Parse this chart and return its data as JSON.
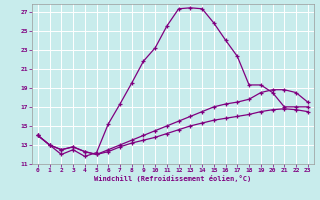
{
  "xlabel": "Windchill (Refroidissement éolien,°C)",
  "background_color": "#c8ecec",
  "grid_color": "#b0d8d8",
  "line_color": "#800080",
  "xlim": [
    -0.5,
    23.5
  ],
  "ylim": [
    11,
    27.8
  ],
  "yticks": [
    11,
    13,
    15,
    17,
    19,
    21,
    23,
    25,
    27
  ],
  "xticks": [
    0,
    1,
    2,
    3,
    4,
    5,
    6,
    7,
    8,
    9,
    10,
    11,
    12,
    13,
    14,
    15,
    16,
    17,
    18,
    19,
    20,
    21,
    22,
    23
  ],
  "series": [
    {
      "x": [
        0,
        1,
        2,
        3,
        4,
        5,
        6,
        7,
        8,
        9,
        10,
        11,
        12,
        13,
        14,
        15,
        16,
        17,
        18,
        19,
        20,
        21,
        22,
        23
      ],
      "y": [
        14.0,
        13.0,
        12.0,
        12.5,
        11.8,
        12.2,
        15.2,
        17.3,
        19.5,
        21.8,
        23.2,
        25.5,
        27.3,
        27.4,
        27.3,
        25.8,
        24.0,
        22.3,
        19.3,
        19.3,
        18.5,
        17.0,
        17.0,
        17.0
      ]
    },
    {
      "x": [
        0,
        1,
        2,
        3,
        4,
        5,
        6,
        7,
        8,
        9,
        10,
        11,
        12,
        13,
        14,
        15,
        16,
        17,
        18,
        19,
        20,
        21,
        22,
        23
      ],
      "y": [
        14.0,
        13.0,
        12.5,
        12.8,
        12.3,
        12.0,
        12.5,
        13.0,
        13.5,
        14.0,
        14.5,
        15.0,
        15.5,
        16.0,
        16.5,
        17.0,
        17.3,
        17.5,
        17.8,
        18.5,
        18.8,
        18.8,
        18.5,
        17.5
      ]
    },
    {
      "x": [
        0,
        1,
        2,
        3,
        4,
        5,
        6,
        7,
        8,
        9,
        10,
        11,
        12,
        13,
        14,
        15,
        16,
        17,
        18,
        19,
        20,
        21,
        22,
        23
      ],
      "y": [
        14.0,
        13.0,
        12.5,
        12.8,
        12.3,
        12.0,
        12.3,
        12.8,
        13.2,
        13.5,
        13.8,
        14.2,
        14.6,
        15.0,
        15.3,
        15.6,
        15.8,
        16.0,
        16.2,
        16.5,
        16.7,
        16.8,
        16.7,
        16.5
      ]
    }
  ]
}
